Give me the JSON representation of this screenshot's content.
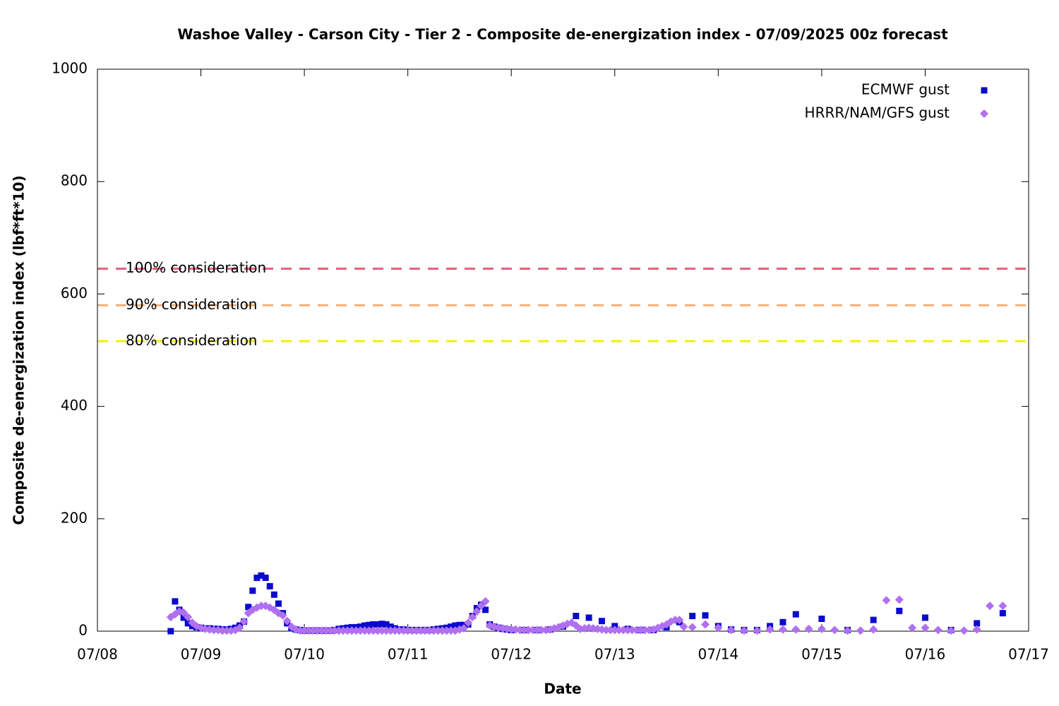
{
  "chart_data": {
    "type": "scatter",
    "title": "Washoe Valley - Carson City - Tier 2 - Composite de-energization index - 07/09/2025 00z forecast",
    "x_label": "Date",
    "y_label": "Composite de-energization index (lbf*ft*10)",
    "xlim": [
      0,
      216
    ],
    "xticks": [
      {
        "value": 0,
        "label": "07/08"
      },
      {
        "value": 24,
        "label": "07/09"
      },
      {
        "value": 48,
        "label": "07/10"
      },
      {
        "value": 72,
        "label": "07/11"
      },
      {
        "value": 96,
        "label": "07/12"
      },
      {
        "value": 120,
        "label": "07/13"
      },
      {
        "value": 144,
        "label": "07/14"
      },
      {
        "value": 168,
        "label": "07/15"
      },
      {
        "value": 192,
        "label": "07/16"
      },
      {
        "value": 216,
        "label": "07/17"
      }
    ],
    "ylim": [
      0,
      1000
    ],
    "yticks": [
      0,
      200,
      400,
      600,
      800,
      1000
    ],
    "legend": "top-right",
    "thresholds": [
      {
        "label": "100% consideration",
        "value": 645,
        "color": "#e0607a"
      },
      {
        "label": "90% consideration",
        "value": 580,
        "color": "#f5b07a"
      },
      {
        "label": "80% consideration",
        "value": 516,
        "color": "#f0f000"
      }
    ],
    "series": [
      {
        "name": "ECMWF gust",
        "color": "#0a0acc",
        "marker": "square",
        "x": [
          17,
          18,
          19,
          20,
          21,
          22,
          23,
          24,
          25,
          26,
          27,
          28,
          29,
          30,
          31,
          32,
          33,
          34,
          35,
          36,
          37,
          38,
          39,
          40,
          41,
          42,
          43,
          44,
          45,
          46,
          47,
          48,
          49,
          50,
          51,
          52,
          53,
          54,
          55,
          56,
          57,
          58,
          59,
          60,
          61,
          62,
          63,
          64,
          65,
          66,
          67,
          68,
          69,
          70,
          71,
          72,
          73,
          74,
          75,
          76,
          77,
          78,
          79,
          80,
          81,
          82,
          83,
          84,
          85,
          86,
          87,
          88,
          89,
          90,
          91,
          92,
          93,
          94,
          95,
          96,
          99,
          102,
          105,
          108,
          111,
          114,
          117,
          120,
          123,
          126,
          129,
          132,
          135,
          138,
          141,
          144,
          147,
          150,
          153,
          156,
          159,
          162,
          168,
          174,
          180,
          186,
          192,
          198,
          204,
          210
        ],
        "values": [
          0,
          53,
          38,
          24,
          14,
          9,
          7,
          6,
          5,
          5,
          4,
          4,
          3,
          3,
          4,
          6,
          10,
          17,
          43,
          72,
          95,
          99,
          95,
          80,
          65,
          49,
          32,
          14,
          5,
          3,
          2,
          1,
          1,
          1,
          1,
          1,
          1,
          1,
          2,
          4,
          5,
          6,
          7,
          7,
          8,
          10,
          11,
          12,
          12,
          13,
          12,
          8,
          5,
          3,
          3,
          2,
          2,
          2,
          2,
          2,
          2,
          3,
          4,
          5,
          6,
          8,
          10,
          11,
          11,
          12,
          27,
          41,
          47,
          38,
          12,
          8,
          6,
          4,
          3,
          2,
          2,
          2,
          3,
          8,
          27,
          24,
          18,
          9,
          4,
          2,
          2,
          7,
          16,
          27,
          28,
          9,
          3,
          2,
          2,
          9,
          16,
          30,
          22,
          2,
          20,
          36,
          24,
          2,
          14,
          32
        ]
      },
      {
        "name": "HRRR/NAM/GFS gust",
        "color": "#b070f0",
        "marker": "diamond",
        "x": [
          17,
          18,
          19,
          20,
          21,
          22,
          23,
          24,
          25,
          26,
          27,
          28,
          29,
          30,
          31,
          32,
          33,
          34,
          35,
          36,
          37,
          38,
          39,
          40,
          41,
          42,
          43,
          44,
          45,
          46,
          47,
          48,
          49,
          50,
          51,
          52,
          53,
          54,
          55,
          56,
          57,
          58,
          59,
          60,
          61,
          62,
          63,
          64,
          65,
          66,
          67,
          68,
          69,
          70,
          71,
          72,
          73,
          74,
          75,
          76,
          77,
          78,
          79,
          80,
          81,
          82,
          83,
          84,
          85,
          86,
          87,
          88,
          89,
          90,
          91,
          92,
          93,
          94,
          95,
          96,
          97,
          98,
          99,
          100,
          101,
          102,
          103,
          104,
          105,
          106,
          107,
          108,
          109,
          110,
          111,
          112,
          113,
          114,
          115,
          116,
          117,
          118,
          119,
          120,
          121,
          122,
          123,
          124,
          125,
          126,
          127,
          128,
          129,
          130,
          131,
          132,
          133,
          134,
          135,
          136,
          138,
          141,
          144,
          147,
          150,
          153,
          156,
          159,
          162,
          165,
          168,
          171,
          174,
          177,
          180,
          183,
          186,
          189,
          192,
          195,
          198,
          201,
          204,
          207,
          210
        ],
        "values": [
          25,
          30,
          35,
          33,
          25,
          15,
          9,
          6,
          4,
          3,
          2,
          2,
          1,
          1,
          1,
          2,
          6,
          17,
          32,
          38,
          42,
          45,
          45,
          42,
          38,
          32,
          28,
          18,
          8,
          3,
          1,
          1,
          1,
          1,
          1,
          1,
          1,
          1,
          1,
          1,
          1,
          1,
          1,
          1,
          1,
          1,
          1,
          1,
          1,
          1,
          1,
          1,
          1,
          1,
          1,
          1,
          1,
          1,
          1,
          1,
          1,
          1,
          1,
          1,
          1,
          1,
          1,
          3,
          5,
          15,
          25,
          35,
          45,
          53,
          10,
          8,
          6,
          5,
          4,
          3,
          3,
          2,
          2,
          2,
          2,
          2,
          2,
          2,
          3,
          5,
          7,
          10,
          13,
          15,
          10,
          4,
          5,
          6,
          5,
          4,
          3,
          2,
          2,
          2,
          2,
          2,
          2,
          2,
          2,
          2,
          2,
          2,
          3,
          6,
          9,
          12,
          17,
          20,
          20,
          8,
          7,
          12,
          6,
          2,
          1,
          1,
          3,
          3,
          3,
          4,
          4,
          2,
          1,
          1,
          3,
          55,
          56,
          6,
          6,
          2,
          1,
          1,
          3,
          45,
          45
        ]
      }
    ]
  }
}
